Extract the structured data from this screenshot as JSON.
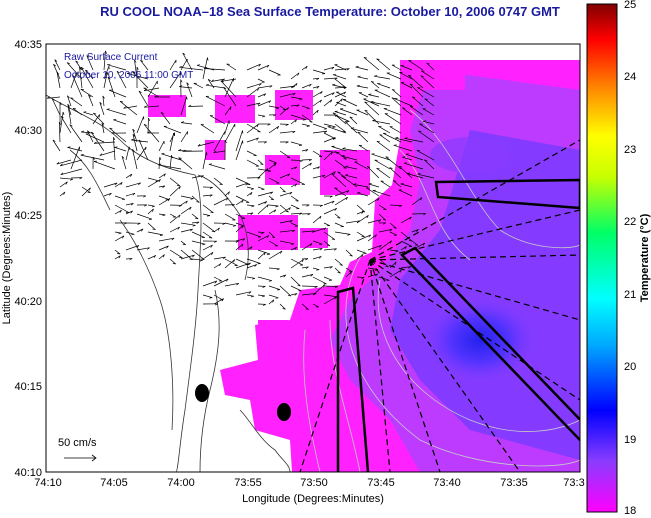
{
  "title": "RU COOL  NOAA–18  Sea Surface Temperature:  October 10, 2006 0747 GMT",
  "overlay": {
    "line1": "Raw Surface Current",
    "line2": "October 10, 2006 11:00 GMT",
    "scale_label": "50 cm/s"
  },
  "map": {
    "xlabel": "Longitude (Degrees:Minutes)",
    "ylabel": "Latitude (Degrees:Minutes)",
    "x_ticks": [
      "74:10",
      "74:05",
      "74:00",
      "73:55",
      "73:50",
      "73:45",
      "73:40",
      "73:35",
      "73:3"
    ],
    "y_ticks": [
      "40:35",
      "40:30",
      "40:25",
      "40:20",
      "40:15",
      "40:10"
    ],
    "colors": {
      "land": "#ffffff",
      "sst_warm": "#ff22ff",
      "sst_cool": "#6a3cff",
      "sst_coldest": "#2a2aff",
      "coast": "#333333",
      "bathy": "#cccccc"
    }
  },
  "colorbar": {
    "title": "Temperature (°C)",
    "min": 18,
    "max": 25,
    "labels": [
      "25",
      "24",
      "23",
      "22",
      "21",
      "20",
      "19",
      "18"
    ],
    "colormap": [
      "#ff00ff",
      "#0000ff",
      "#00ffff",
      "#00ff00",
      "#ffff00",
      "#ff8000",
      "#ff0000",
      "#800000"
    ]
  }
}
